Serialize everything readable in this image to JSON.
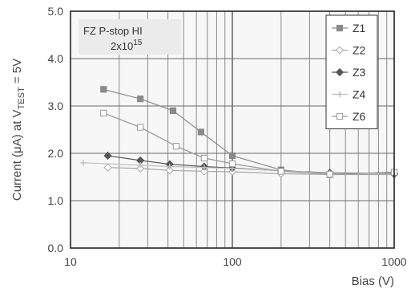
{
  "chart_data": {
    "type": "scatter",
    "x_scale": "log",
    "y_scale": "linear",
    "xlim": [
      10,
      1000
    ],
    "ylim": [
      0.0,
      5.0
    ],
    "xticks": [
      10,
      100,
      1000
    ],
    "xtick_labels": [
      "10",
      "100",
      "1000"
    ],
    "yticks": [
      0.0,
      1.0,
      2.0,
      3.0,
      4.0,
      5.0
    ],
    "ytick_labels": [
      "0.0",
      "1.0",
      "2.0",
      "3.0",
      "4.0",
      "5.0"
    ],
    "xlabel": "Bias (V)",
    "ylabel": {
      "prefix": "Current (μA) at V",
      "subscript": "TEST",
      "suffix": " = 5V"
    },
    "grid": true,
    "legend_position": "top-right",
    "annotation": {
      "line1": "FZ   P-stop HI",
      "line2_base": "2x10",
      "line2_sup": "15"
    },
    "series": [
      {
        "name": "Z1",
        "color": "#8a8a8a",
        "marker": "square-filled",
        "x": [
          16,
          27,
          43,
          64,
          100,
          200,
          400,
          1000
        ],
        "y": [
          3.35,
          3.15,
          2.9,
          2.45,
          1.95,
          1.65,
          1.55,
          1.6
        ]
      },
      {
        "name": "Z2",
        "color": "#a8a8a8",
        "marker": "diamond-open",
        "x": [
          17,
          27,
          41,
          67,
          100,
          200,
          400,
          1000
        ],
        "y": [
          1.7,
          1.68,
          1.64,
          1.62,
          1.61,
          1.57,
          1.55,
          1.55
        ]
      },
      {
        "name": "Z3",
        "color": "#555555",
        "marker": "diamond-filled",
        "x": [
          17,
          27,
          41,
          67,
          100,
          200,
          400,
          1000
        ],
        "y": [
          1.95,
          1.85,
          1.77,
          1.72,
          1.69,
          1.63,
          1.59,
          1.57
        ]
      },
      {
        "name": "Z4",
        "color": "#c0c0c0",
        "marker": "cross",
        "x": [
          12,
          27,
          41,
          67,
          100,
          200,
          400,
          1000
        ],
        "y": [
          1.8,
          1.75,
          1.72,
          1.7,
          1.68,
          1.63,
          1.58,
          1.56
        ]
      },
      {
        "name": "Z6",
        "color": "#999999",
        "marker": "square-open",
        "x": [
          16,
          27,
          45,
          67,
          100,
          200,
          400,
          1000
        ],
        "y": [
          2.85,
          2.55,
          2.15,
          1.9,
          1.78,
          1.62,
          1.56,
          1.6
        ]
      }
    ]
  }
}
